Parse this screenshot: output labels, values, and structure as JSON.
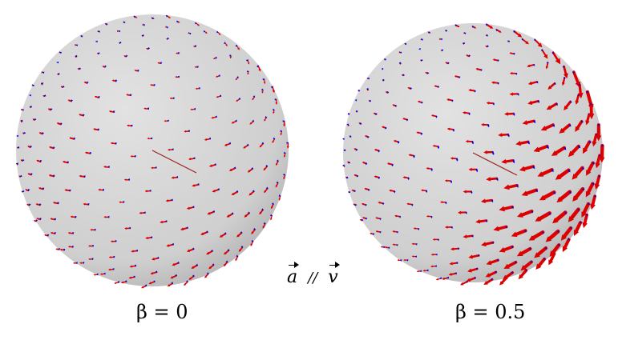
{
  "figure": {
    "panels": [
      {
        "label": "β = 0",
        "beta": 0
      },
      {
        "label": "β = 0.5",
        "beta": 0.5
      }
    ],
    "center_label": {
      "left_symbol": "a",
      "separator": "//",
      "right_symbol": "v"
    },
    "colors": {
      "sphere": "#d3d3d3",
      "arrow_primary": "#dd0000",
      "arrow_secondary": "#0000ee",
      "arrow_dark": "#8b0000"
    }
  }
}
